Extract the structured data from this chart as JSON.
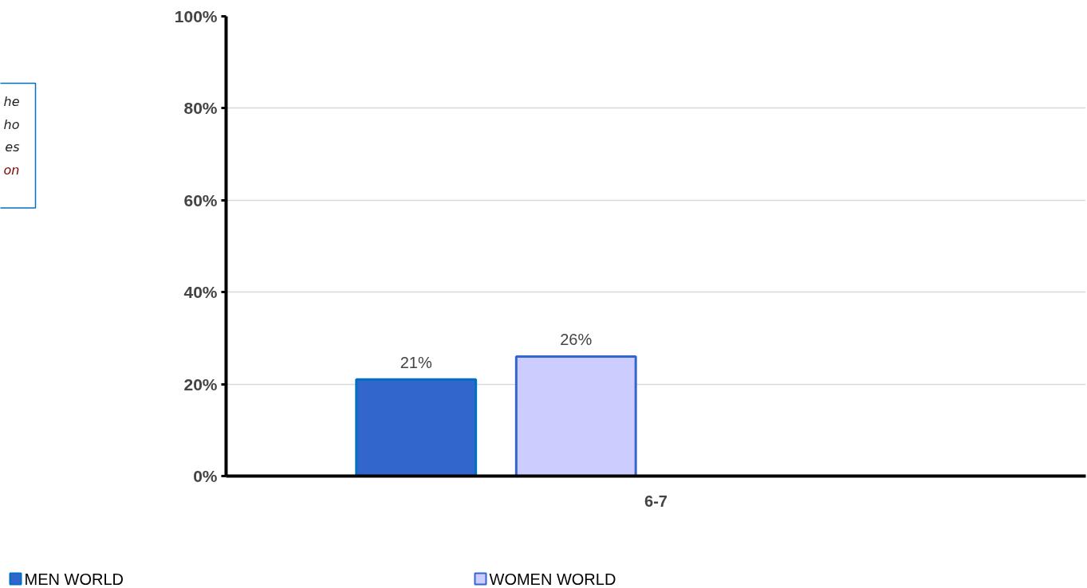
{
  "chart_data": {
    "type": "bar",
    "categories": [
      "6-7"
    ],
    "series": [
      {
        "name": "MEN WORLD",
        "color": "#3366cc",
        "values": [
          21
        ],
        "value_labels": [
          "21%"
        ]
      },
      {
        "name": "WOMEN WORLD",
        "color": "#ccccff",
        "values": [
          26
        ],
        "value_labels": [
          "26%"
        ]
      }
    ],
    "ylim": [
      0,
      100
    ],
    "yticks": [
      {
        "value": 0,
        "label": "0%"
      },
      {
        "value": 20,
        "label": "20%"
      },
      {
        "value": 40,
        "label": "40%"
      },
      {
        "value": 60,
        "label": "60%"
      },
      {
        "value": 80,
        "label": "80%"
      },
      {
        "value": 100,
        "label": "100%"
      }
    ],
    "grid": "y",
    "legend": "bottom",
    "annotations": [
      "he",
      "ho",
      "es",
      "on"
    ]
  }
}
